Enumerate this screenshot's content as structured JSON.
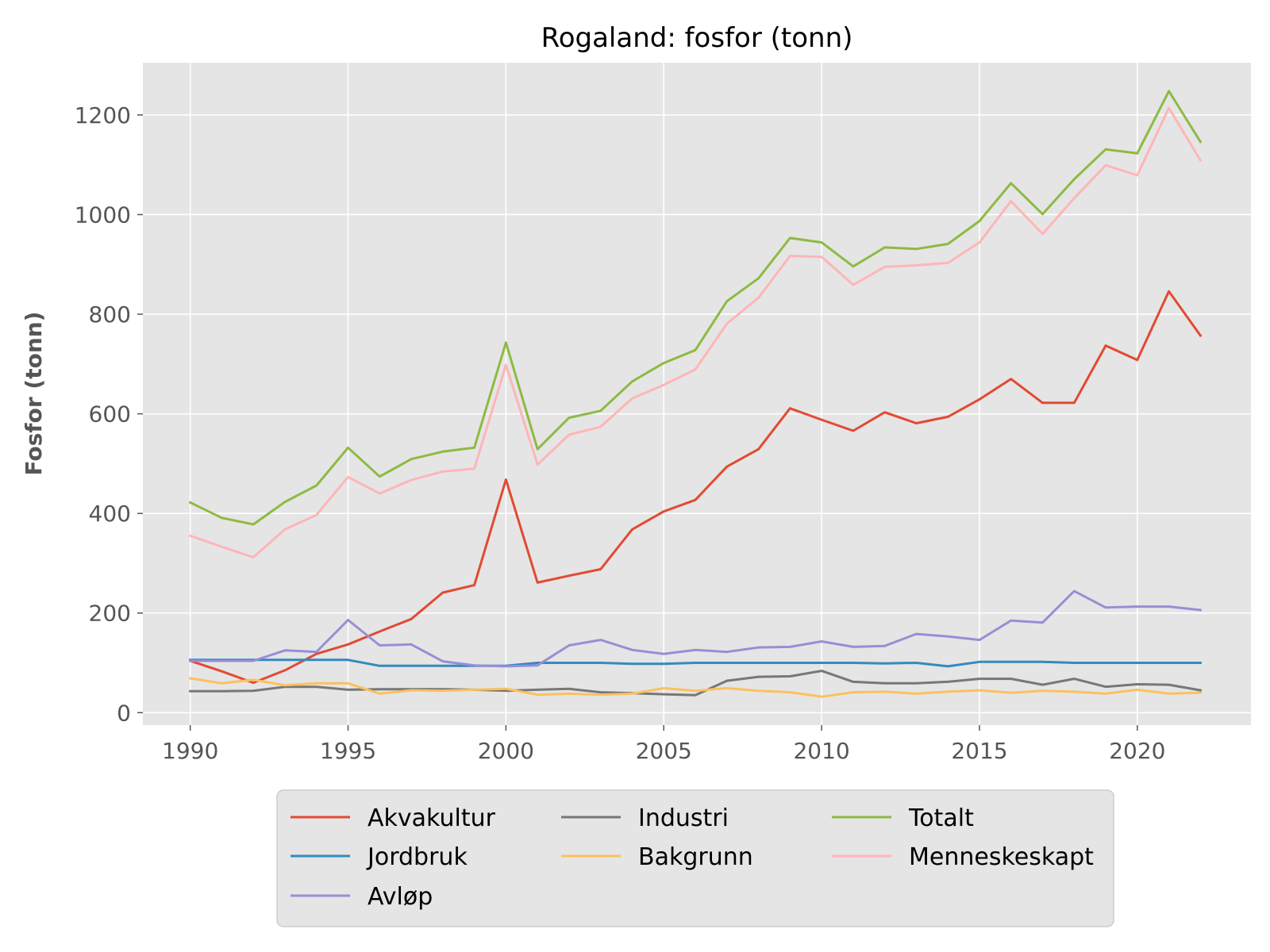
{
  "chart_data": {
    "type": "line",
    "title": "Rogaland: fosfor (tonn)",
    "xlabel": "",
    "ylabel": "Fosfor (tonn)",
    "xlim": [
      1988.5,
      2023.6
    ],
    "ylim": [
      -25,
      1305
    ],
    "x_ticks": [
      1990,
      1995,
      2000,
      2005,
      2010,
      2015,
      2020
    ],
    "y_ticks": [
      0,
      200,
      400,
      600,
      800,
      1000,
      1200
    ],
    "grid": true,
    "legend_position": "below",
    "x": [
      1990,
      1991,
      1992,
      1993,
      1994,
      1995,
      1996,
      1997,
      1998,
      1999,
      2000,
      2001,
      2002,
      2003,
      2004,
      2005,
      2006,
      2007,
      2008,
      2009,
      2010,
      2011,
      2012,
      2013,
      2014,
      2015,
      2016,
      2017,
      2018,
      2019,
      2020,
      2021,
      2022
    ],
    "series": [
      {
        "name": "Akvakultur",
        "color": "#E24A33",
        "values": [
          104,
          83,
          60,
          85,
          118,
          137,
          163,
          188,
          241,
          256,
          468,
          261,
          275,
          288,
          368,
          404,
          427,
          494,
          529,
          611,
          588,
          566,
          603,
          581,
          594,
          629,
          670,
          622,
          622,
          737,
          708,
          846,
          757
        ]
      },
      {
        "name": "Jordbruk",
        "color": "#348ABD",
        "values": [
          106,
          106,
          106,
          106,
          106,
          106,
          94,
          94,
          94,
          94,
          94,
          100,
          100,
          100,
          98,
          98,
          100,
          100,
          100,
          100,
          100,
          100,
          99,
          100,
          93,
          102,
          102,
          102,
          100,
          100,
          100,
          100,
          100
        ]
      },
      {
        "name": "Avløp",
        "color": "#988ED5",
        "values": [
          104,
          104,
          104,
          125,
          122,
          186,
          135,
          137,
          103,
          95,
          93,
          95,
          135,
          146,
          126,
          118,
          126,
          122,
          131,
          132,
          143,
          132,
          134,
          158,
          153,
          146,
          185,
          181,
          244,
          211,
          213,
          213,
          206
        ]
      },
      {
        "name": "Industri",
        "color": "#777777",
        "values": [
          43,
          43,
          44,
          52,
          52,
          46,
          47,
          47,
          47,
          46,
          44,
          46,
          48,
          41,
          39,
          37,
          35,
          64,
          72,
          73,
          84,
          62,
          59,
          59,
          62,
          68,
          68,
          56,
          68,
          52,
          57,
          56,
          45
        ]
      },
      {
        "name": "Bakgrunn",
        "color": "#FBC15E",
        "values": [
          69,
          59,
          66,
          55,
          59,
          59,
          38,
          45,
          44,
          46,
          48,
          36,
          38,
          36,
          38,
          49,
          44,
          49,
          44,
          41,
          32,
          41,
          42,
          38,
          42,
          45,
          40,
          44,
          42,
          38,
          46,
          38,
          40
        ]
      },
      {
        "name": "Totalt",
        "color": "#8EBA42",
        "values": [
          422,
          391,
          378,
          423,
          456,
          532,
          474,
          509,
          524,
          532,
          743,
          529,
          592,
          606,
          665,
          702,
          728,
          826,
          872,
          953,
          944,
          896,
          934,
          931,
          941,
          987,
          1063,
          1001,
          1071,
          1131,
          1123,
          1248,
          1146
        ]
      },
      {
        "name": "Menneskeskapt",
        "color": "#FFB5B8",
        "values": [
          355,
          333,
          312,
          368,
          397,
          473,
          440,
          467,
          484,
          490,
          698,
          498,
          558,
          574,
          631,
          658,
          689,
          781,
          833,
          917,
          915,
          859,
          895,
          898,
          903,
          944,
          1027,
          961,
          1033,
          1099,
          1079,
          1214,
          1109
        ]
      }
    ]
  }
}
